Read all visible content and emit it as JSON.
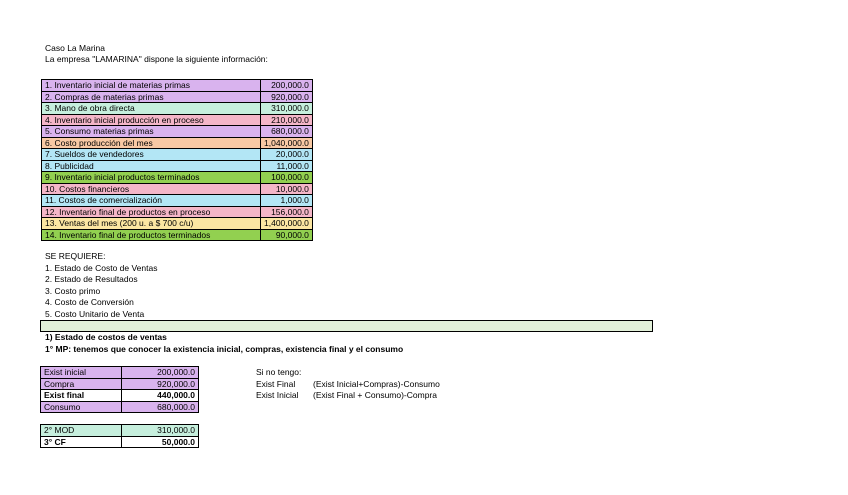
{
  "header": {
    "title": "Caso La Marina",
    "intro": "La empresa \"LAMARINA\" dispone la siguiente información:"
  },
  "info_table": [
    {
      "label": "1. Inventario inicial de materias primas",
      "value": "200,000.0",
      "color": "#d9b3ee"
    },
    {
      "label": "2. Compras de materias primas",
      "value": "920,000.0",
      "color": "#d9b3ee"
    },
    {
      "label": "3. Mano de obra directa",
      "value": "310,000.0",
      "color": "#c6efdd"
    },
    {
      "label": "4. Inventario inicial producción en proceso",
      "value": "210,000.0",
      "color": "#f4b6c8"
    },
    {
      "label": "5. Consumo materias primas",
      "value": "680,000.0",
      "color": "#d9b3ee"
    },
    {
      "label": "6. Costo producción del mes",
      "value": "1,040,000.0",
      "color": "#f8c9a4"
    },
    {
      "label": "7. Sueldos de vendedores",
      "value": "20,000.0",
      "color": "#b3e6f5"
    },
    {
      "label": "8. Publicidad",
      "value": "11,000.0",
      "color": "#b3e6f5"
    },
    {
      "label": "9. Inventario inicial productos terminados",
      "value": "100,000.0",
      "color": "#92d050"
    },
    {
      "label": "10. Costos financieros",
      "value": "10,000.0",
      "color": "#f4b6c8"
    },
    {
      "label": "11. Costos de comercialización",
      "value": "1,000.0",
      "color": "#b3e6f5"
    },
    {
      "label": "12. Inventario final de productos en proceso",
      "value": "156,000.0",
      "color": "#f4b6c8"
    },
    {
      "label": "13. Ventas del mes (200 u. a $ 700 c/u)",
      "value": "1,400,000.0",
      "color": "#fbe6a2"
    },
    {
      "label": "14. Inventario final de productos terminados",
      "value": "90,000.0",
      "color": "#92d050"
    }
  ],
  "requirements": {
    "heading": "SE REQUIERE:",
    "items": [
      "1. Estado de Costo de Ventas",
      "2. Estado de Resultados",
      "3. Costo primo",
      "4. Costo de Conversión",
      "5. Costo Unitario de Venta"
    ]
  },
  "section1": {
    "title": "1) Estado de costos de ventas",
    "subtitle": "1° MP: tenemos que conocer la existencia inicial, compras, existencia final y el consumo"
  },
  "mp_table": [
    {
      "label": "Exist inicial",
      "value": "200,000.0",
      "color": "#d9b3ee",
      "bold": false
    },
    {
      "label": "Compra",
      "value": "920,000.0",
      "color": "#d9b3ee",
      "bold": false
    },
    {
      "label": "Exist final",
      "value": "440,000.0",
      "color": "#ffffff",
      "bold": true
    },
    {
      "label": "Consumo",
      "value": "680,000.0",
      "color": "#d9b3ee",
      "bold": false
    }
  ],
  "notes": {
    "heading": "Si no tengo:",
    "rows": [
      {
        "term": "Exist Final",
        "formula": "(Exist Inicial+Compras)-Consumo"
      },
      {
        "term": "Exist Inicial",
        "formula": "(Exist Final + Consumo)-Compra"
      }
    ]
  },
  "mod_table": [
    {
      "label": "2° MOD",
      "value": "310,000.0",
      "color": "#c6efdd",
      "bold": false
    },
    {
      "label": "3° CF",
      "value": "50,000.0",
      "color": "#ffffff",
      "bold": true
    }
  ]
}
